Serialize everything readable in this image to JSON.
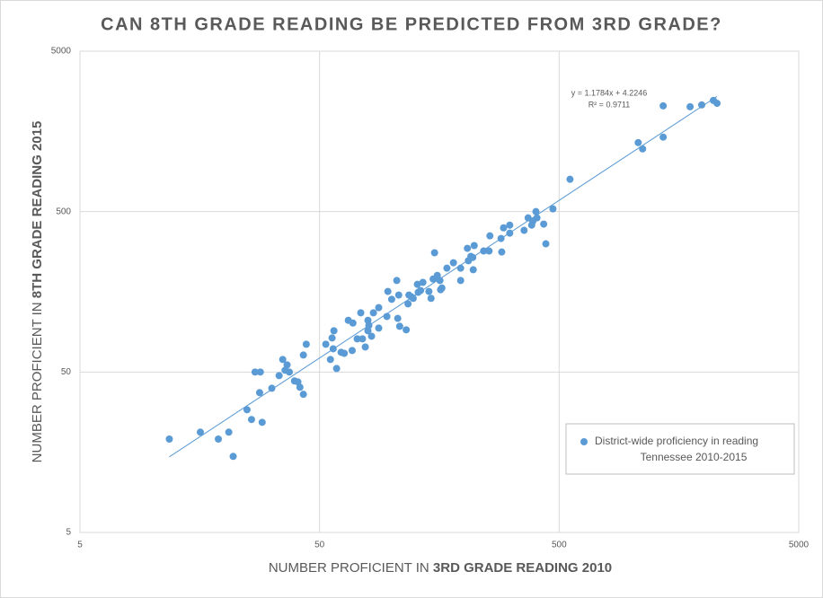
{
  "chart_data": {
    "type": "scatter",
    "title": "CAN 8TH GRADE READING BE PREDICTED FROM 3RD GRADE?",
    "xlabel": [
      "NUMBER PROFICIENT IN",
      "3RD GRADE READING 2010"
    ],
    "ylabel": [
      "NUMBER PROFICIENT IN",
      "8TH GRADE READING 2015"
    ],
    "xscale": "log",
    "yscale": "log",
    "xlim": [
      5,
      5000
    ],
    "ylim": [
      5,
      5000
    ],
    "xticks": [
      5,
      50,
      500,
      5000
    ],
    "yticks": [
      5,
      50,
      500,
      5000
    ],
    "grid": true,
    "legend": "bottom-right",
    "trendline": true,
    "annotations": [
      "y = 1.1784x + 4.2246",
      "R² = 0.9711"
    ],
    "series": [
      {
        "name": "District-wide proficiency in reading",
        "subname": "Tennessee 2010-2015",
        "color": "#5b9bd5",
        "x": [
          11.8,
          15.9,
          18.9,
          20.9,
          21.8,
          24.9,
          26,
          28.8,
          26.9,
          28.3,
          28.1,
          31.6,
          33.9,
          35.1,
          36.6,
          35.9,
          37.4,
          39.3,
          40.6,
          41.4,
          42.8,
          42.8,
          44,
          53.1,
          56.4,
          57.4,
          55.5,
          57,
          58.9,
          61.5,
          63.4,
          65.9,
          68.9,
          68.4,
          71.8,
          74.3,
          75.5,
          77.6,
          79.6,
          79.6,
          80.3,
          82.4,
          83.9,
          88.3,
          88.3,
          95.5,
          96.4,
          100,
          105,
          106,
          107,
          108,
          115,
          118,
          117,
          121,
          123,
          128,
          129,
          132,
          135,
          143,
          146,
          149,
          151,
          155,
          159,
          160,
          162,
          170,
          181,
          194,
          194,
          209,
          214,
          219,
          207,
          221,
          218,
          242,
          255,
          257,
          286,
          288,
          293,
          311,
          311,
          357,
          371,
          384,
          388,
          400,
          404,
          431,
          440,
          471,
          555,
          1069,
          1115,
          1359,
          1359,
          1760,
          1968,
          2202,
          2280
        ],
        "values": [
          19.1,
          21.1,
          19.1,
          21.1,
          14.9,
          29.1,
          25.3,
          24.3,
          50,
          50,
          37.2,
          39.6,
          47.5,
          59.9,
          55.4,
          51.3,
          50,
          44,
          43.4,
          40.2,
          36.3,
          63.8,
          74.5,
          74.5,
          81.5,
          90.4,
          59.9,
          69.8,
          52.6,
          66.4,
          65.4,
          105,
          101,
          68.1,
          80.5,
          117,
          80.5,
          71.6,
          90.4,
          105,
          97.5,
          83.6,
          117,
          93.9,
          126,
          111,
          159,
          142,
          186,
          108,
          151,
          96.4,
          91.6,
          151,
          133,
          147,
          144,
          176,
          157,
          161,
          181,
          159,
          144,
          190,
          277,
          200,
          186,
          163,
          167,
          222,
          240,
          186,
          222,
          247,
          263,
          217,
          295,
          307,
          259,
          284,
          284,
          353,
          340,
          280,
          396,
          367,
          412,
          382,
          457,
          412,
          434,
          500,
          457,
          418,
          315,
          520,
          795,
          1346,
          1230,
          2280,
          1456,
          2252,
          2313,
          2465,
          2365
        ]
      }
    ]
  }
}
